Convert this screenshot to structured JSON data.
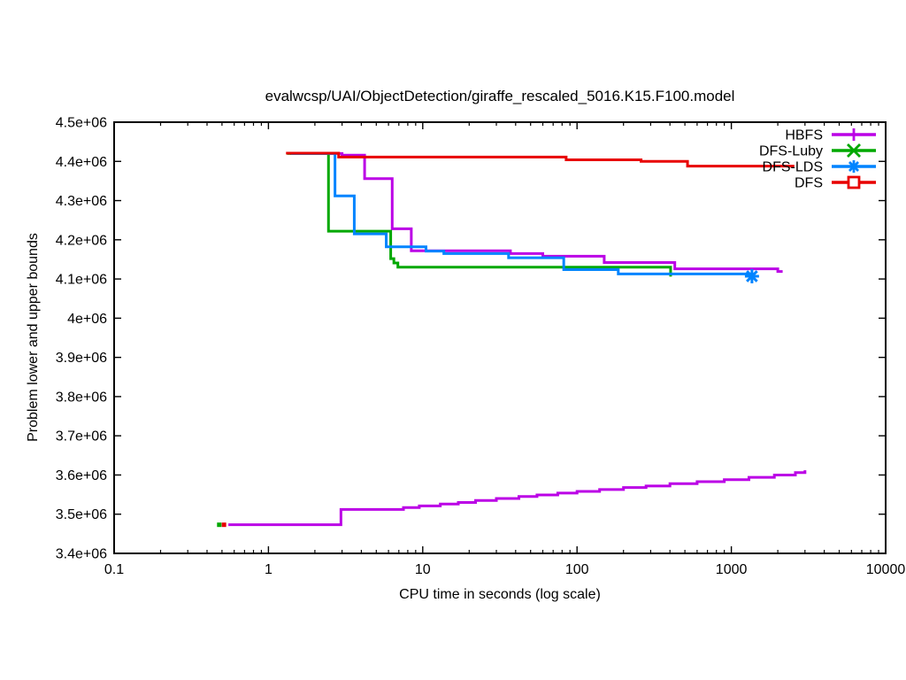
{
  "chart_data": {
    "type": "line",
    "title": "evalwcsp/UAI/ObjectDetection/giraffe_rescaled_5016.K15.F100.model",
    "xlabel": "CPU time in seconds (log scale)",
    "ylabel": "Problem lower and upper bounds",
    "x_scale": "log",
    "xlim": [
      0.1,
      10000
    ],
    "ylim": [
      3400000,
      4500000
    ],
    "grid": false,
    "legend_position": "top-right-inside",
    "x_ticks": [
      {
        "v": 0.1,
        "label": "0.1"
      },
      {
        "v": 1,
        "label": "1"
      },
      {
        "v": 10,
        "label": "10"
      },
      {
        "v": 100,
        "label": "100"
      },
      {
        "v": 1000,
        "label": "1000"
      },
      {
        "v": 10000,
        "label": "10000"
      }
    ],
    "y_ticks": [
      {
        "v": 3400000,
        "label": "3.4e+06"
      },
      {
        "v": 3500000,
        "label": "3.5e+06"
      },
      {
        "v": 3600000,
        "label": "3.6e+06"
      },
      {
        "v": 3700000,
        "label": "3.7e+06"
      },
      {
        "v": 3800000,
        "label": "3.8e+06"
      },
      {
        "v": 3900000,
        "label": "3.9e+06"
      },
      {
        "v": 4000000,
        "label": "4e+06"
      },
      {
        "v": 4100000,
        "label": "4.1e+06"
      },
      {
        "v": 4200000,
        "label": "4.2e+06"
      },
      {
        "v": 4300000,
        "label": "4.3e+06"
      },
      {
        "v": 4400000,
        "label": "4.4e+06"
      },
      {
        "v": 4500000,
        "label": "4.5e+06"
      }
    ],
    "series": [
      {
        "name": "HBFS",
        "color": "#bb00e6",
        "marker": "plus",
        "upper_bound": [
          [
            1.38,
            4420000
          ],
          [
            3.0,
            4420000
          ],
          [
            3.0,
            4416000
          ],
          [
            4.2,
            4416000
          ],
          [
            4.2,
            4356000
          ],
          [
            6.34,
            4356000
          ],
          [
            6.34,
            4228000
          ],
          [
            8.43,
            4228000
          ],
          [
            8.43,
            4172000
          ],
          [
            37,
            4172000
          ],
          [
            37,
            4165000
          ],
          [
            60,
            4165000
          ],
          [
            60,
            4158000
          ],
          [
            150,
            4158000
          ],
          [
            150,
            4142000
          ],
          [
            430,
            4142000
          ],
          [
            430,
            4126000
          ],
          [
            2000,
            4126000
          ],
          [
            2000,
            4119000
          ],
          [
            2150,
            4119000
          ]
        ],
        "lower_bound": [
          [
            0.55,
            3473000
          ],
          [
            2.95,
            3473000
          ],
          [
            2.95,
            3512000
          ],
          [
            7.5,
            3512000
          ],
          [
            7.5,
            3517000
          ],
          [
            9.5,
            3517000
          ],
          [
            9.5,
            3521000
          ],
          [
            13,
            3521000
          ],
          [
            13,
            3526000
          ],
          [
            17,
            3526000
          ],
          [
            17,
            3530000
          ],
          [
            22,
            3530000
          ],
          [
            22,
            3535000
          ],
          [
            30,
            3535000
          ],
          [
            30,
            3540000
          ],
          [
            42,
            3540000
          ],
          [
            42,
            3545000
          ],
          [
            55,
            3545000
          ],
          [
            55,
            3549000
          ],
          [
            75,
            3549000
          ],
          [
            75,
            3554000
          ],
          [
            100,
            3554000
          ],
          [
            100,
            3558000
          ],
          [
            140,
            3558000
          ],
          [
            140,
            3563000
          ],
          [
            200,
            3563000
          ],
          [
            200,
            3568000
          ],
          [
            280,
            3568000
          ],
          [
            280,
            3572000
          ],
          [
            400,
            3572000
          ],
          [
            400,
            3578000
          ],
          [
            600,
            3578000
          ],
          [
            600,
            3583000
          ],
          [
            900,
            3583000
          ],
          [
            900,
            3588000
          ],
          [
            1300,
            3588000
          ],
          [
            1300,
            3594000
          ],
          [
            1900,
            3594000
          ],
          [
            1900,
            3600000
          ],
          [
            2600,
            3600000
          ],
          [
            2600,
            3606000
          ],
          [
            3000,
            3606000
          ],
          [
            3000,
            3612000
          ]
        ]
      },
      {
        "name": "DFS-Luby",
        "color": "#00a800",
        "marker": "cross",
        "upper_bound": [
          [
            1.32,
            4420000
          ],
          [
            2.45,
            4420000
          ],
          [
            2.45,
            4222000
          ],
          [
            6.2,
            4222000
          ],
          [
            6.2,
            4152000
          ],
          [
            6.5,
            4152000
          ],
          [
            6.5,
            4141000
          ],
          [
            6.9,
            4141000
          ],
          [
            6.9,
            4130000
          ],
          [
            404,
            4130000
          ],
          [
            404,
            4106000
          ]
        ],
        "start_dot": [
          0.48,
          3473000
        ]
      },
      {
        "name": "DFS-LDS",
        "color": "#0084ff",
        "marker": "asterisk",
        "upper_bound": [
          [
            1.4,
            4420000
          ],
          [
            2.7,
            4420000
          ],
          [
            2.7,
            4312000
          ],
          [
            3.6,
            4312000
          ],
          [
            3.6,
            4215000
          ],
          [
            5.8,
            4215000
          ],
          [
            5.8,
            4182000
          ],
          [
            10.5,
            4182000
          ],
          [
            10.5,
            4171000
          ],
          [
            13.7,
            4171000
          ],
          [
            13.7,
            4165000
          ],
          [
            36,
            4165000
          ],
          [
            36,
            4154000
          ],
          [
            82,
            4154000
          ],
          [
            82,
            4124000
          ],
          [
            185,
            4124000
          ],
          [
            185,
            4113000
          ],
          [
            1360,
            4113000
          ],
          [
            1360,
            4107000
          ]
        ],
        "end_marker": [
          1360,
          4107000
        ]
      },
      {
        "name": "DFS",
        "color": "#e80000",
        "marker": "open-square",
        "upper_bound": [
          [
            1.3,
            4421000
          ],
          [
            2.85,
            4421000
          ],
          [
            2.85,
            4411000
          ],
          [
            85,
            4411000
          ],
          [
            85,
            4404000
          ],
          [
            260,
            4404000
          ],
          [
            260,
            4400000
          ],
          [
            520,
            4400000
          ],
          [
            520,
            4388000
          ],
          [
            2560,
            4388000
          ]
        ],
        "start_dot": [
          0.515,
          3473000
        ]
      }
    ]
  }
}
